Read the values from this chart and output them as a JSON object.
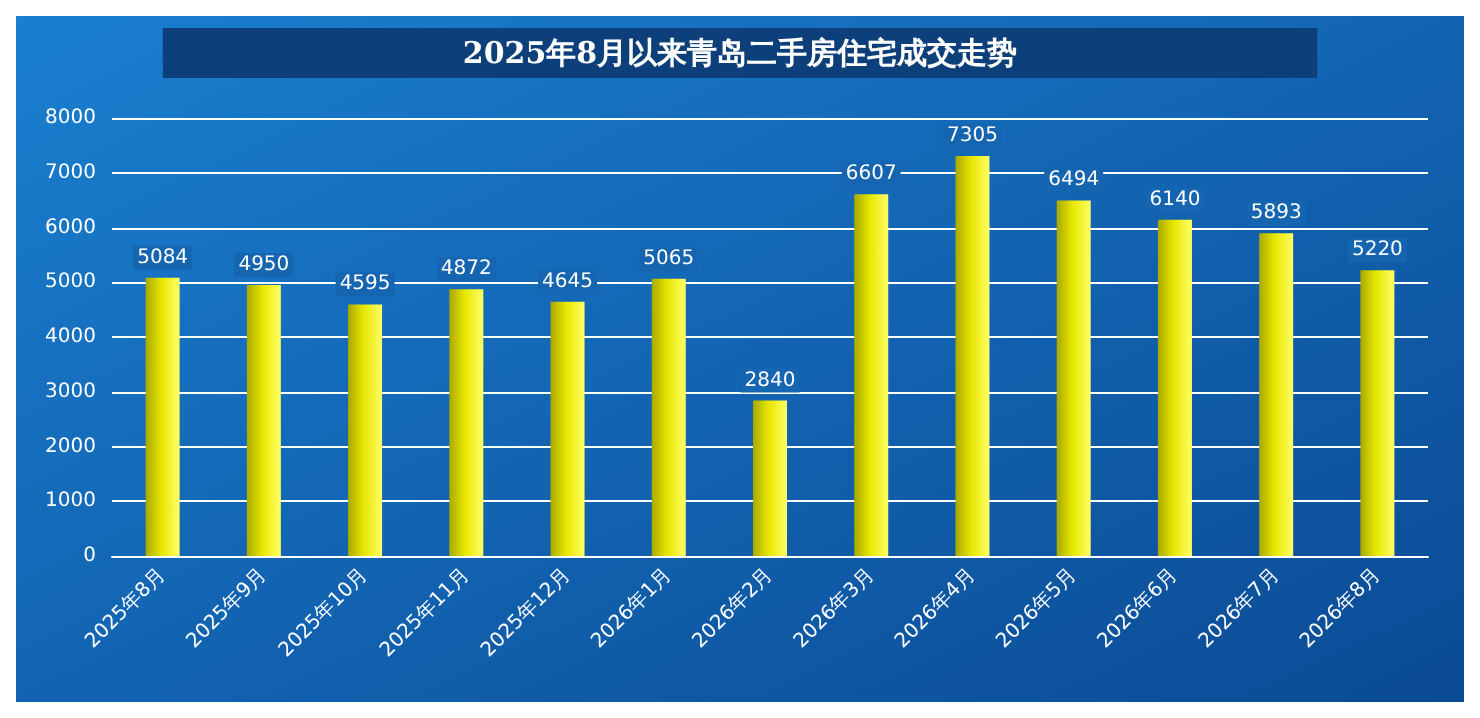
{
  "chart_data": {
    "type": "bar",
    "title": "2025年8月以来青岛二手房住宅成交走势",
    "categories": [
      "2025年8月",
      "2025年9月",
      "2025年10月",
      "2025年11月",
      "2025年12月",
      "2026年1月",
      "2026年2月",
      "2026年3月",
      "2026年4月",
      "2026年5月",
      "2026年6月",
      "2026年7月",
      "2026年8月"
    ],
    "values": [
      5084,
      4950,
      4595,
      4872,
      4645,
      5065,
      2840,
      6607,
      7305,
      6494,
      6140,
      5893,
      5220
    ],
    "color": "#e6e600",
    "ylim": [
      0,
      8000
    ],
    "yticks": [
      0,
      1000,
      2000,
      3000,
      4000,
      5000,
      6000,
      7000,
      8000
    ],
    "grid": "y",
    "data_labels": true
  }
}
